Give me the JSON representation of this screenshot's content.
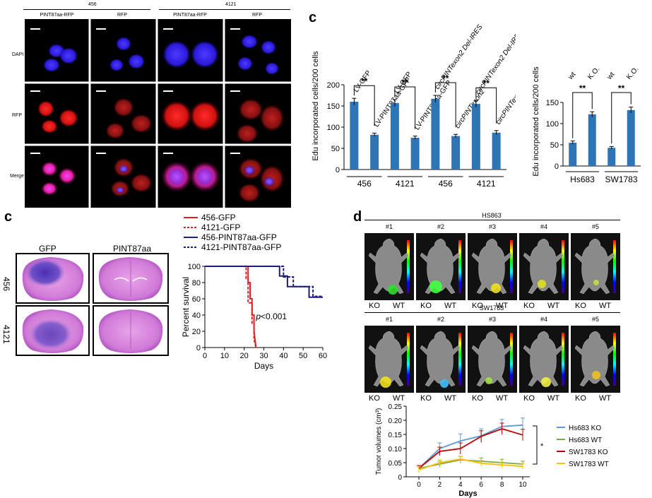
{
  "panel_a": {
    "groups": [
      "456",
      "4121"
    ],
    "col_labels": [
      "PINT87aa-RFP",
      "RFP",
      "PINT87aa-RFP",
      "RFP"
    ],
    "row_labels": [
      "DAPI",
      "RFP",
      "Merge"
    ]
  },
  "panel_c_top": {
    "letter": "c",
    "chart_data": {
      "type": "bar",
      "ylabel": "Edu incorporated cells/200 cells",
      "ylim": [
        0,
        200
      ],
      "yticks": [
        0,
        50,
        100,
        150,
        200
      ],
      "bar_labels": [
        "LV-GFP",
        "LV-PINT87aa-GFP",
        "LV-GFP",
        "LV-PINT87aa-GFP",
        "circPINTexon2 Del-IRES",
        "circPINTexon2",
        "circPINTexon2 Del-IRES",
        "circPINTexon2"
      ],
      "values": [
        160,
        82,
        157,
        75,
        167,
        79,
        155,
        87
      ],
      "errors": [
        8,
        4,
        8,
        4,
        8,
        4,
        8,
        5
      ],
      "groups": [
        "456",
        "4121",
        "456",
        "4121"
      ],
      "significance": [
        "**",
        "**",
        "**",
        "**"
      ],
      "color": "#2e75b6"
    }
  },
  "panel_c_right": {
    "chart_data": {
      "type": "bar",
      "ylabel": "Edu incorporated cells/200 cells",
      "ylim": [
        0,
        150
      ],
      "yticks": [
        0,
        50,
        100,
        150
      ],
      "bar_labels": [
        "wt",
        "K.O.",
        "wt",
        "K.O."
      ],
      "values": [
        55,
        122,
        43,
        132
      ],
      "errors": [
        4,
        6,
        3,
        7
      ],
      "groups": [
        "Hs683",
        "SW1783"
      ],
      "significance": [
        "**",
        "**"
      ],
      "color": "#2e75b6"
    }
  },
  "panel_c_bottom": {
    "letter": "c",
    "col_labels": [
      "GFP",
      "PINT87aa"
    ],
    "row_labels": [
      "456",
      "4121"
    ],
    "chart_data": {
      "type": "line",
      "xlabel": "Days",
      "ylabel": "Percent survival",
      "xlim": [
        0,
        60
      ],
      "ylim": [
        0,
        100
      ],
      "xticks": [
        0,
        10,
        20,
        30,
        40,
        50,
        60
      ],
      "yticks": [
        0,
        20,
        40,
        60,
        80,
        100
      ],
      "annotation": "p<0.001",
      "series": [
        {
          "name": "456-GFP",
          "color": "#e02020",
          "dash": false,
          "x": [
            0,
            22,
            22,
            23,
            23,
            24,
            24,
            25,
            25,
            26
          ],
          "y": [
            100,
            100,
            80,
            80,
            60,
            60,
            40,
            40,
            20,
            0
          ]
        },
        {
          "name": "4121-GFP",
          "color": "#e02020",
          "dash": true,
          "x": [
            0,
            21,
            21,
            22,
            22,
            24,
            24,
            25,
            25,
            26
          ],
          "y": [
            100,
            100,
            85,
            85,
            55,
            55,
            30,
            30,
            10,
            0
          ]
        },
        {
          "name": "456-PINT87aa-GFP",
          "color": "#1c1c7a",
          "dash": false,
          "x": [
            0,
            38,
            38,
            42,
            42,
            53,
            53,
            60
          ],
          "y": [
            100,
            100,
            88,
            88,
            75,
            75,
            62,
            62
          ]
        },
        {
          "name": "4121-PINT87aa-GFP",
          "color": "#1c1c7a",
          "dash": true,
          "x": [
            0,
            40,
            40,
            45,
            45,
            55,
            55,
            60
          ],
          "y": [
            100,
            100,
            87,
            87,
            75,
            75,
            63,
            63
          ]
        }
      ]
    }
  },
  "panel_d": {
    "letter": "d",
    "top_title": "HS863",
    "bottom_title": "SW1783",
    "mouse_labels": [
      "#1",
      "#2",
      "#3",
      "#4",
      "#5"
    ],
    "ko_label": "KO",
    "wt_label": "WT",
    "chart_data": {
      "type": "line",
      "xlabel": "Days",
      "ylabel": "Tumor volumes (cm³)",
      "xlim": [
        0,
        10
      ],
      "ylim": [
        0,
        0.25
      ],
      "xticks": [
        0,
        2,
        4,
        6,
        8,
        10
      ],
      "yticks": [
        0,
        0.05,
        0.1,
        0.15,
        0.2,
        0.25
      ],
      "ytick_labels": [
        "0",
        "0.05",
        "0.10",
        "0.15",
        "0.20",
        "0.25"
      ],
      "significance": "*",
      "series": [
        {
          "name": "Hs683 KO",
          "color": "#5b9bd5",
          "x": [
            0,
            2,
            4,
            6,
            8,
            10
          ],
          "y": [
            0.03,
            0.1,
            0.127,
            0.145,
            0.178,
            0.183
          ],
          "err": [
            0.01,
            0.02,
            0.025,
            0.025,
            0.025,
            0.025
          ]
        },
        {
          "name": "Hs683 WT",
          "color": "#70ad47",
          "x": [
            0,
            2,
            4,
            6,
            8,
            10
          ],
          "y": [
            0.03,
            0.045,
            0.06,
            0.055,
            0.05,
            0.045
          ],
          "err": [
            0.01,
            0.01,
            0.012,
            0.012,
            0.012,
            0.01
          ]
        },
        {
          "name": "SW1783 KO",
          "color": "#c00000",
          "x": [
            0,
            2,
            4,
            6,
            8,
            10
          ],
          "y": [
            0.03,
            0.09,
            0.1,
            0.143,
            0.17,
            0.148
          ],
          "err": [
            0.01,
            0.015,
            0.02,
            0.02,
            0.02,
            0.02
          ]
        },
        {
          "name": "SW1783 WT",
          "color": "#ffc000",
          "x": [
            0,
            2,
            4,
            6,
            8,
            10
          ],
          "y": [
            0.025,
            0.05,
            0.063,
            0.048,
            0.042,
            0.037
          ],
          "err": [
            0.01,
            0.01,
            0.01,
            0.01,
            0.01,
            0.01
          ]
        }
      ]
    }
  }
}
